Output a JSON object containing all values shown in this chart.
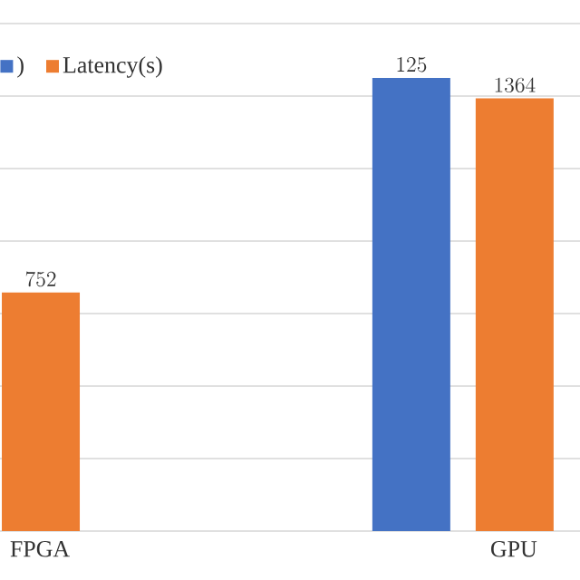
{
  "chart_data": {
    "type": "bar",
    "categories": [
      "FPGA",
      "GPU"
    ],
    "series": [
      {
        "name": ")",
        "color": "#4472c4",
        "values": [
          null,
          125
        ]
      },
      {
        "name": "Latency(s)",
        "color": "#ed7d31",
        "values": [
          752,
          1364
        ],
        "axis": "y2"
      }
    ],
    "ylim": [
      0,
      140
    ],
    "yticks": [
      {
        "value": 0,
        "label": null
      },
      {
        "value": 20,
        "label": null
      },
      {
        "value": 40,
        "label": null
      },
      {
        "value": 60,
        "label": null
      },
      {
        "value": 80,
        "label": null
      },
      {
        "value": 100,
        "label": null
      },
      {
        "value": 120,
        "label": null
      },
      {
        "value": 140,
        "label": null
      }
    ],
    "y2lim": [
      0,
      1600
    ],
    "tick_labels": "x",
    "grid": "y",
    "legend": "top left",
    "data_labels": true
  }
}
